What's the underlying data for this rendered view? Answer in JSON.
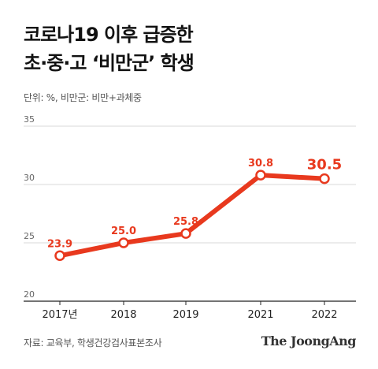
{
  "title": {
    "line1": "코로나19 이후 급증한",
    "line2": "초·중·고 ‘비만군’ 학생"
  },
  "unit_note": "단위: %, 비만군: 비만+과체중",
  "source": "자료: 교육부, 학생건강검사표본조사",
  "brand": "The JoongAng",
  "colors": {
    "line": "#e8391e",
    "label": "#e8391e",
    "grid": "#d9d9d9",
    "axis": "#222222",
    "tick": "#666666"
  },
  "chart_data": {
    "type": "line",
    "categories": [
      "2017년",
      "2018",
      "2019",
      "2021",
      "2022"
    ],
    "values": [
      23.9,
      25.0,
      25.8,
      30.8,
      30.5
    ],
    "value_labels": [
      "23.9",
      "25.0",
      "25.8",
      "30.8",
      "30.5"
    ],
    "highlight_index": 4,
    "ylim": [
      20,
      35
    ],
    "yticks": [
      "35",
      "30",
      "25",
      "20"
    ],
    "grid": true,
    "xlabel": "",
    "ylabel": ""
  }
}
